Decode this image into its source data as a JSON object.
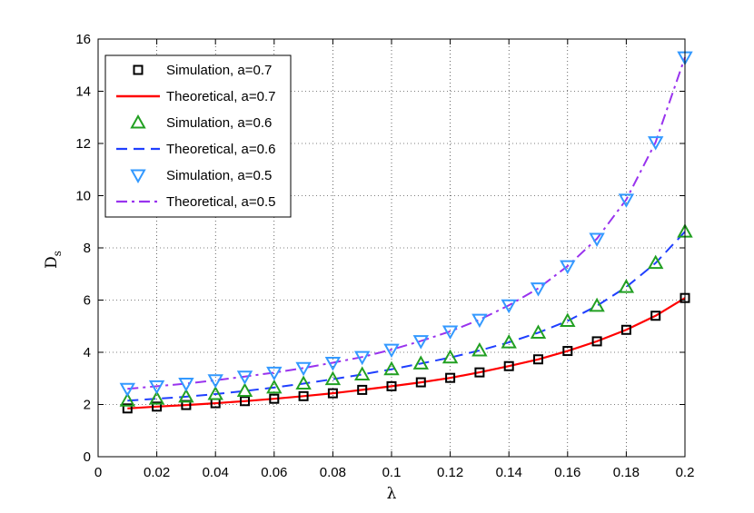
{
  "chart_data": {
    "type": "line",
    "xlabel": "λ",
    "ylabel": "D",
    "ylabel_subscript": "s",
    "xlim": [
      0,
      0.2
    ],
    "ylim": [
      0,
      16
    ],
    "xticks": [
      0,
      0.02,
      0.04,
      0.06,
      0.08,
      0.1,
      0.12,
      0.14,
      0.16,
      0.18,
      0.2
    ],
    "xtick_labels": [
      "0",
      "0.02",
      "0.04",
      "0.06",
      "0.08",
      "0.1",
      "0.12",
      "0.14",
      "0.16",
      "0.18",
      "0.2"
    ],
    "yticks": [
      0,
      2,
      4,
      6,
      8,
      10,
      12,
      14,
      16
    ],
    "ytick_labels": [
      "0",
      "2",
      "4",
      "6",
      "8",
      "10",
      "12",
      "14",
      "16"
    ],
    "grid": true,
    "legend_position": "top-left",
    "x": [
      0.01,
      0.02,
      0.03,
      0.04,
      0.05,
      0.06,
      0.07,
      0.08,
      0.09,
      0.1,
      0.11,
      0.12,
      0.13,
      0.14,
      0.15,
      0.16,
      0.17,
      0.18,
      0.19,
      0.2
    ],
    "series": [
      {
        "name": "Simulation, a=0.7",
        "style": "marker-square",
        "color": "#000000",
        "values": [
          1.85,
          1.92,
          1.98,
          2.05,
          2.13,
          2.22,
          2.32,
          2.43,
          2.56,
          2.7,
          2.85,
          3.02,
          3.23,
          3.47,
          3.73,
          4.05,
          4.42,
          4.86,
          5.4,
          6.08
        ]
      },
      {
        "name": "Theoretical, a=0.7",
        "style": "line-solid",
        "color": "#ff0000",
        "values": [
          1.85,
          1.92,
          1.98,
          2.05,
          2.13,
          2.22,
          2.32,
          2.43,
          2.56,
          2.7,
          2.85,
          3.02,
          3.23,
          3.47,
          3.73,
          4.05,
          4.42,
          4.86,
          5.4,
          6.08
        ]
      },
      {
        "name": "Simulation, a=0.6",
        "style": "marker-triangle-up",
        "color": "#22a022",
        "values": [
          2.15,
          2.22,
          2.3,
          2.4,
          2.52,
          2.65,
          2.8,
          2.97,
          3.15,
          3.35,
          3.57,
          3.8,
          4.07,
          4.38,
          4.75,
          5.2,
          5.78,
          6.5,
          7.42,
          8.62
        ]
      },
      {
        "name": "Theoretical, a=0.6",
        "style": "line-dashed",
        "color": "#1f3fff",
        "values": [
          2.15,
          2.22,
          2.3,
          2.4,
          2.52,
          2.65,
          2.8,
          2.97,
          3.15,
          3.35,
          3.57,
          3.8,
          4.07,
          4.38,
          4.75,
          5.2,
          5.78,
          6.5,
          7.42,
          8.62
        ]
      },
      {
        "name": "Simulation, a=0.5",
        "style": "marker-triangle-down",
        "color": "#3399ff",
        "values": [
          2.6,
          2.7,
          2.8,
          2.93,
          3.07,
          3.22,
          3.4,
          3.6,
          3.82,
          4.1,
          4.43,
          4.8,
          5.25,
          5.8,
          6.45,
          7.3,
          8.35,
          9.85,
          12.05,
          15.3
        ]
      },
      {
        "name": "Theoretical, a=0.5",
        "style": "line-dashdot",
        "color": "#9933ee",
        "values": [
          2.6,
          2.7,
          2.8,
          2.93,
          3.07,
          3.22,
          3.4,
          3.6,
          3.82,
          4.1,
          4.43,
          4.8,
          5.25,
          5.8,
          6.45,
          7.3,
          8.35,
          9.85,
          12.05,
          15.3
        ]
      }
    ]
  }
}
